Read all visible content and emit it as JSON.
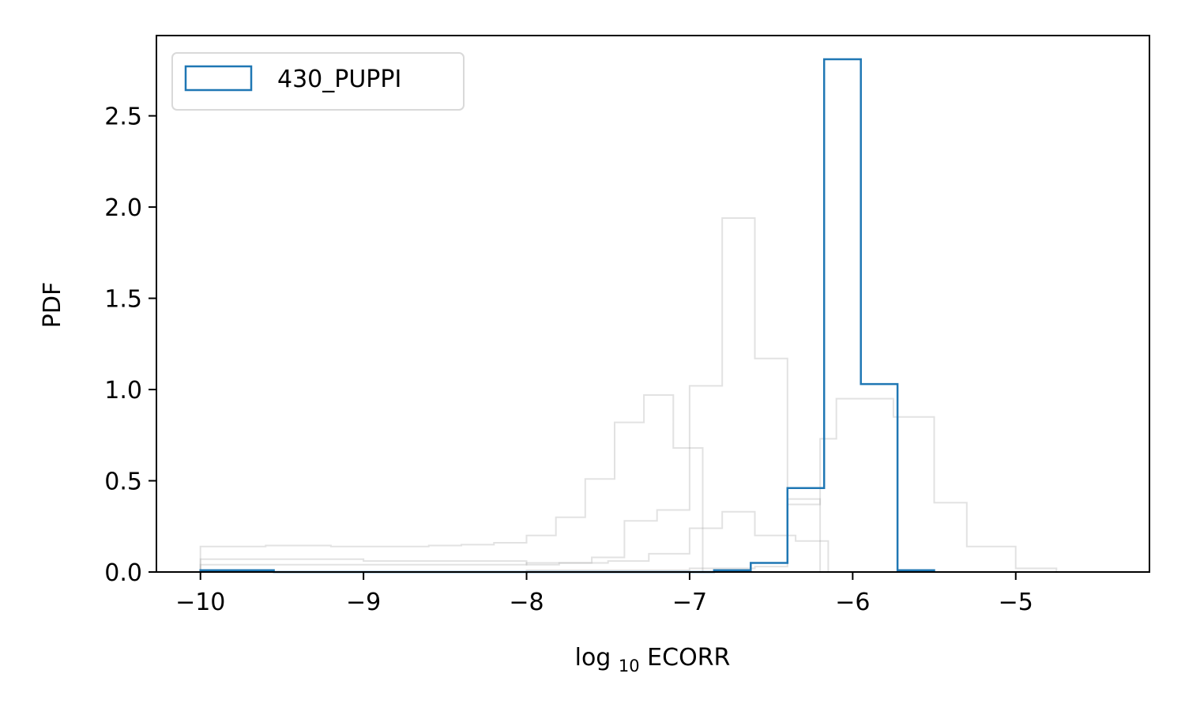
{
  "chart_data": {
    "type": "histogram",
    "title": "",
    "xlabel": {
      "prefix": "log",
      "subscript": "10",
      "suffix": " ECORR"
    },
    "ylabel": "PDF",
    "xlim": [
      -10.27,
      -4.18
    ],
    "ylim": [
      0.0,
      2.94
    ],
    "xticks": [
      -10,
      -9,
      -8,
      -7,
      -6,
      -5
    ],
    "xtick_labels": [
      "−10",
      "−9",
      "−8",
      "−7",
      "−6",
      "−5"
    ],
    "yticks": [
      0.0,
      0.5,
      1.0,
      1.5,
      2.0,
      2.5
    ],
    "ytick_labels": [
      "0.0",
      "0.5",
      "1.0",
      "1.5",
      "2.0",
      "2.5"
    ],
    "grid": false,
    "legend": {
      "position": "upper-left",
      "entries": [
        "430_PUPPI"
      ]
    },
    "highlight_color": "#1f77b4",
    "background_color": "#a0a0a0",
    "series": [
      {
        "name": "430_PUPPI",
        "highlighted": true,
        "edges": [
          -10.0,
          -9.775,
          -9.55,
          -9.325,
          -9.1,
          -8.875,
          -8.65,
          -8.425,
          -8.2,
          -7.975,
          -7.75,
          -7.525,
          -7.3,
          -7.075,
          -6.85,
          -6.625,
          -6.4,
          -6.175,
          -5.95,
          -5.725,
          -5.5
        ],
        "values": [
          0.01,
          0.01,
          0.0,
          0.0,
          0.0,
          0.0,
          0.0,
          0.0,
          0.0,
          0.0,
          0.0,
          0.0,
          0.0,
          0.0,
          0.01,
          0.05,
          0.46,
          2.81,
          1.03,
          0.01
        ]
      },
      {
        "highlighted": false,
        "edges": [
          -10.0,
          -9.8,
          -9.6,
          -9.4,
          -9.2,
          -9.0,
          -8.8,
          -8.6,
          -8.4,
          -8.2,
          -8.0,
          -7.82,
          -7.64,
          -7.46,
          -7.28,
          -7.1,
          -6.92
        ],
        "values": [
          0.14,
          0.14,
          0.145,
          0.145,
          0.14,
          0.14,
          0.14,
          0.145,
          0.15,
          0.16,
          0.2,
          0.3,
          0.51,
          0.82,
          0.97,
          0.68,
          0.0
        ]
      },
      {
        "highlighted": false,
        "edges": [
          -10.0,
          -9.6,
          -9.2,
          -8.8,
          -8.4,
          -8.0,
          -7.6,
          -7.4,
          -7.2,
          -7.0,
          -6.8,
          -6.6,
          -6.4,
          -6.2
        ],
        "values": [
          0.04,
          0.04,
          0.04,
          0.04,
          0.04,
          0.05,
          0.08,
          0.28,
          0.34,
          1.02,
          1.94,
          1.17,
          0.4,
          0.0
        ]
      },
      {
        "highlighted": false,
        "edges": [
          -10.0,
          -9.0,
          -8.0,
          -7.8,
          -7.5,
          -7.25,
          -7.0,
          -6.8,
          -6.6,
          -6.35,
          -6.15
        ],
        "values": [
          0.07,
          0.06,
          0.04,
          0.05,
          0.06,
          0.1,
          0.24,
          0.33,
          0.2,
          0.17,
          0.0
        ]
      },
      {
        "highlighted": false,
        "edges": [
          -10.0,
          -8.0,
          -7.0,
          -6.6,
          -6.4,
          -6.2,
          -6.1,
          -5.95,
          -5.75,
          -5.5,
          -5.3,
          -5.0,
          -4.75
        ],
        "values": [
          0.0,
          0.01,
          0.02,
          0.03,
          0.37,
          0.73,
          0.95,
          0.95,
          0.85,
          0.38,
          0.14,
          0.02,
          0.0
        ]
      }
    ]
  }
}
